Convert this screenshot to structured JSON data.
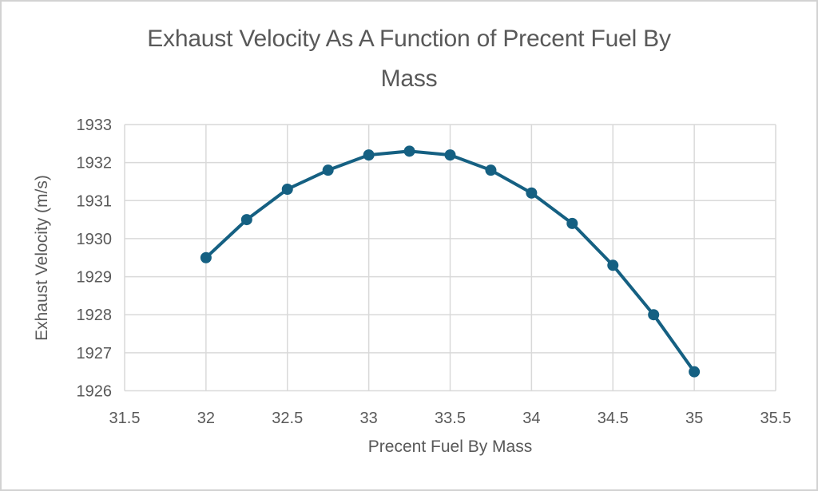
{
  "window": {
    "background": "#ffffff",
    "border_color": "#d2d2d2"
  },
  "title_lines": {
    "line1": "Exhaust Velocity As A Function of Precent Fuel By",
    "line2": "Mass"
  },
  "chart_data": {
    "type": "line",
    "title": "Exhaust Velocity As A Function of Precent Fuel By Mass",
    "xlabel": "Precent Fuel By Mass",
    "ylabel": "Exhaust Velocity (m/s)",
    "x": [
      32,
      32.25,
      32.5,
      32.75,
      33,
      33.25,
      33.5,
      33.75,
      34,
      34.25,
      34.5,
      34.75,
      35
    ],
    "y": [
      1929.5,
      1930.5,
      1931.3,
      1931.8,
      1932.2,
      1932.3,
      1932.2,
      1931.8,
      1931.2,
      1930.4,
      1929.3,
      1928,
      1926.5
    ],
    "xlim": [
      31.5,
      35.5
    ],
    "ylim": [
      1926,
      1933
    ],
    "x_ticks": [
      "31.5",
      "32",
      "32.5",
      "33",
      "33.5",
      "34",
      "34.5",
      "35",
      "35.5"
    ],
    "y_ticks": [
      "1926",
      "1927",
      "1928",
      "1929",
      "1930",
      "1931",
      "1932",
      "1933"
    ],
    "grid": true,
    "legend_position": "none",
    "line_color": "#156082",
    "marker": "circle",
    "marker_radius": 7,
    "line_width": 4,
    "grid_color": "#d9d9d9",
    "text_color": "#595959",
    "tick_font_size": 20
  }
}
